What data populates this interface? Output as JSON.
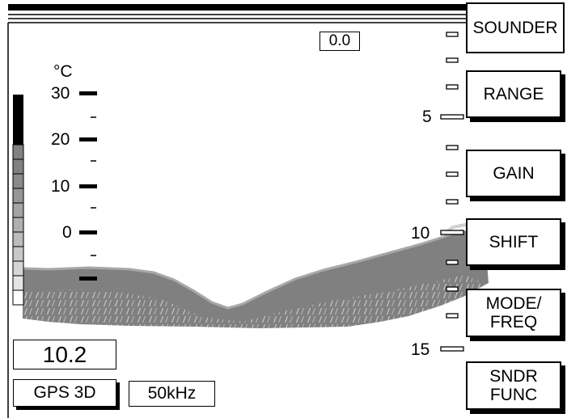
{
  "display": {
    "shift_readout": "0.0",
    "water_temp_value": "10.2",
    "gps_status": "GPS 3D",
    "frequency": "50kHz"
  },
  "temperature_scale": {
    "unit_label": "°C",
    "labels": [
      {
        "text": "30",
        "value": 30
      },
      {
        "text": "20",
        "value": 20
      },
      {
        "text": "10",
        "value": 10
      },
      {
        "text": "0",
        "value": 0
      }
    ]
  },
  "depth_scale": {
    "labels": [
      {
        "text": "5",
        "value": 5
      },
      {
        "text": "10",
        "value": 10
      },
      {
        "text": "15",
        "value": 15
      }
    ]
  },
  "softkeys": [
    {
      "id": "sounder",
      "lines": [
        "SOUNDER"
      ],
      "selected": true
    },
    {
      "id": "range",
      "lines": [
        "RANGE"
      ],
      "selected": false
    },
    {
      "id": "gain",
      "lines": [
        "GAIN"
      ],
      "selected": false
    },
    {
      "id": "shift",
      "lines": [
        "SHIFT"
      ],
      "selected": false
    },
    {
      "id": "mode-freq",
      "lines": [
        "MODE/",
        "FREQ"
      ],
      "selected": false
    },
    {
      "id": "sndr-func",
      "lines": [
        "SNDR",
        "FUNC"
      ],
      "selected": false
    }
  ],
  "colors": {
    "bottom_echo": "#808080",
    "bottom_echo_light": "#a8a8a8",
    "bottom_echo_lightest": "#d0d0d0",
    "ink": "#000000"
  }
}
